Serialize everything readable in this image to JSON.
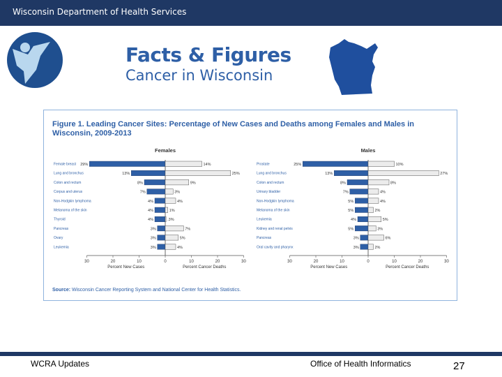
{
  "header": {
    "title": "Wisconsin Department of Health Services"
  },
  "banner": {
    "title": "Facts & Figures",
    "subtitle": "Cancer in Wisconsin"
  },
  "figure": {
    "title": "Figure 1. Leading Cancer Sites: Percentage of New Cases and Deaths among Females and Males in Wisconsin, 2009-2013",
    "source_label": "Source:",
    "source_text": "Wisconsin Cancer Reporting System and National Center for Health Statistics."
  },
  "chart_data": [
    {
      "type": "bar",
      "title": "Females",
      "xlabel_left": "Percent New Cases",
      "xlabel_right": "Percent Cancer Deaths",
      "xlim": [
        -30,
        30
      ],
      "ticks": [
        "30",
        "20",
        "10",
        "0",
        "10",
        "20",
        "30"
      ],
      "categories": [
        "Female breast",
        "Lung and bronchus",
        "Colon and rectum",
        "Corpus and uterus",
        "Non-Hodgkin lymphoma",
        "Melanoma of the skin",
        "Thyroid",
        "Pancreas",
        "Ovary",
        "Leukemia"
      ],
      "series": [
        {
          "name": "Percent New Cases",
          "values": [
            29,
            13,
            8,
            7,
            4,
            4,
            4,
            3,
            3,
            3
          ],
          "labels": [
            "29%",
            "13%",
            "8%",
            "7%",
            "4%",
            "4%",
            "4%",
            "3%",
            "3%",
            "3%"
          ]
        },
        {
          "name": "Percent Cancer Deaths",
          "values": [
            14,
            25,
            9,
            3,
            4,
            1,
            0.3,
            7,
            5,
            4
          ],
          "labels": [
            "14%",
            "25%",
            "9%",
            "3%",
            "4%",
            "1%",
            ".3%",
            "7%",
            "5%",
            "4%"
          ]
        }
      ]
    },
    {
      "type": "bar",
      "title": "Males",
      "xlabel_left": "Percent New Cases",
      "xlabel_right": "Percent Cancer Deaths",
      "xlim": [
        -30,
        30
      ],
      "ticks": [
        "30",
        "20",
        "10",
        "0",
        "10",
        "20",
        "30"
      ],
      "categories": [
        "Prostate",
        "Lung and bronchus",
        "Colon and rectum",
        "Urinary bladder",
        "Non-Hodgkin lymphoma",
        "Melanoma of the skin",
        "Leukemia",
        "Kidney and renal pelvis",
        "Pancreas",
        "Oral cavity and pharynx"
      ],
      "series": [
        {
          "name": "Percent New Cases",
          "values": [
            25,
            13,
            8,
            7,
            5,
            5,
            4,
            5,
            3,
            3
          ],
          "labels": [
            "25%",
            "13%",
            "8%",
            "7%",
            "5%",
            "5%",
            "4%",
            "5%",
            "3%",
            "3%"
          ]
        },
        {
          "name": "Percent Cancer Deaths",
          "values": [
            10,
            27,
            8,
            4,
            4,
            2,
            5,
            3,
            6,
            2
          ],
          "labels": [
            "10%",
            "27%",
            "8%",
            "4%",
            "4%",
            "2%",
            "5%",
            "3%",
            "6%",
            "2%"
          ]
        }
      ]
    }
  ],
  "footer": {
    "left": "WCRA Updates",
    "center": "Office of Health Informatics",
    "page": "27"
  },
  "colors": {
    "header_bg": "#1f3864",
    "accent": "#2e5fa6",
    "bar_new": "#2e5fa6",
    "bar_death": "#ececec"
  }
}
